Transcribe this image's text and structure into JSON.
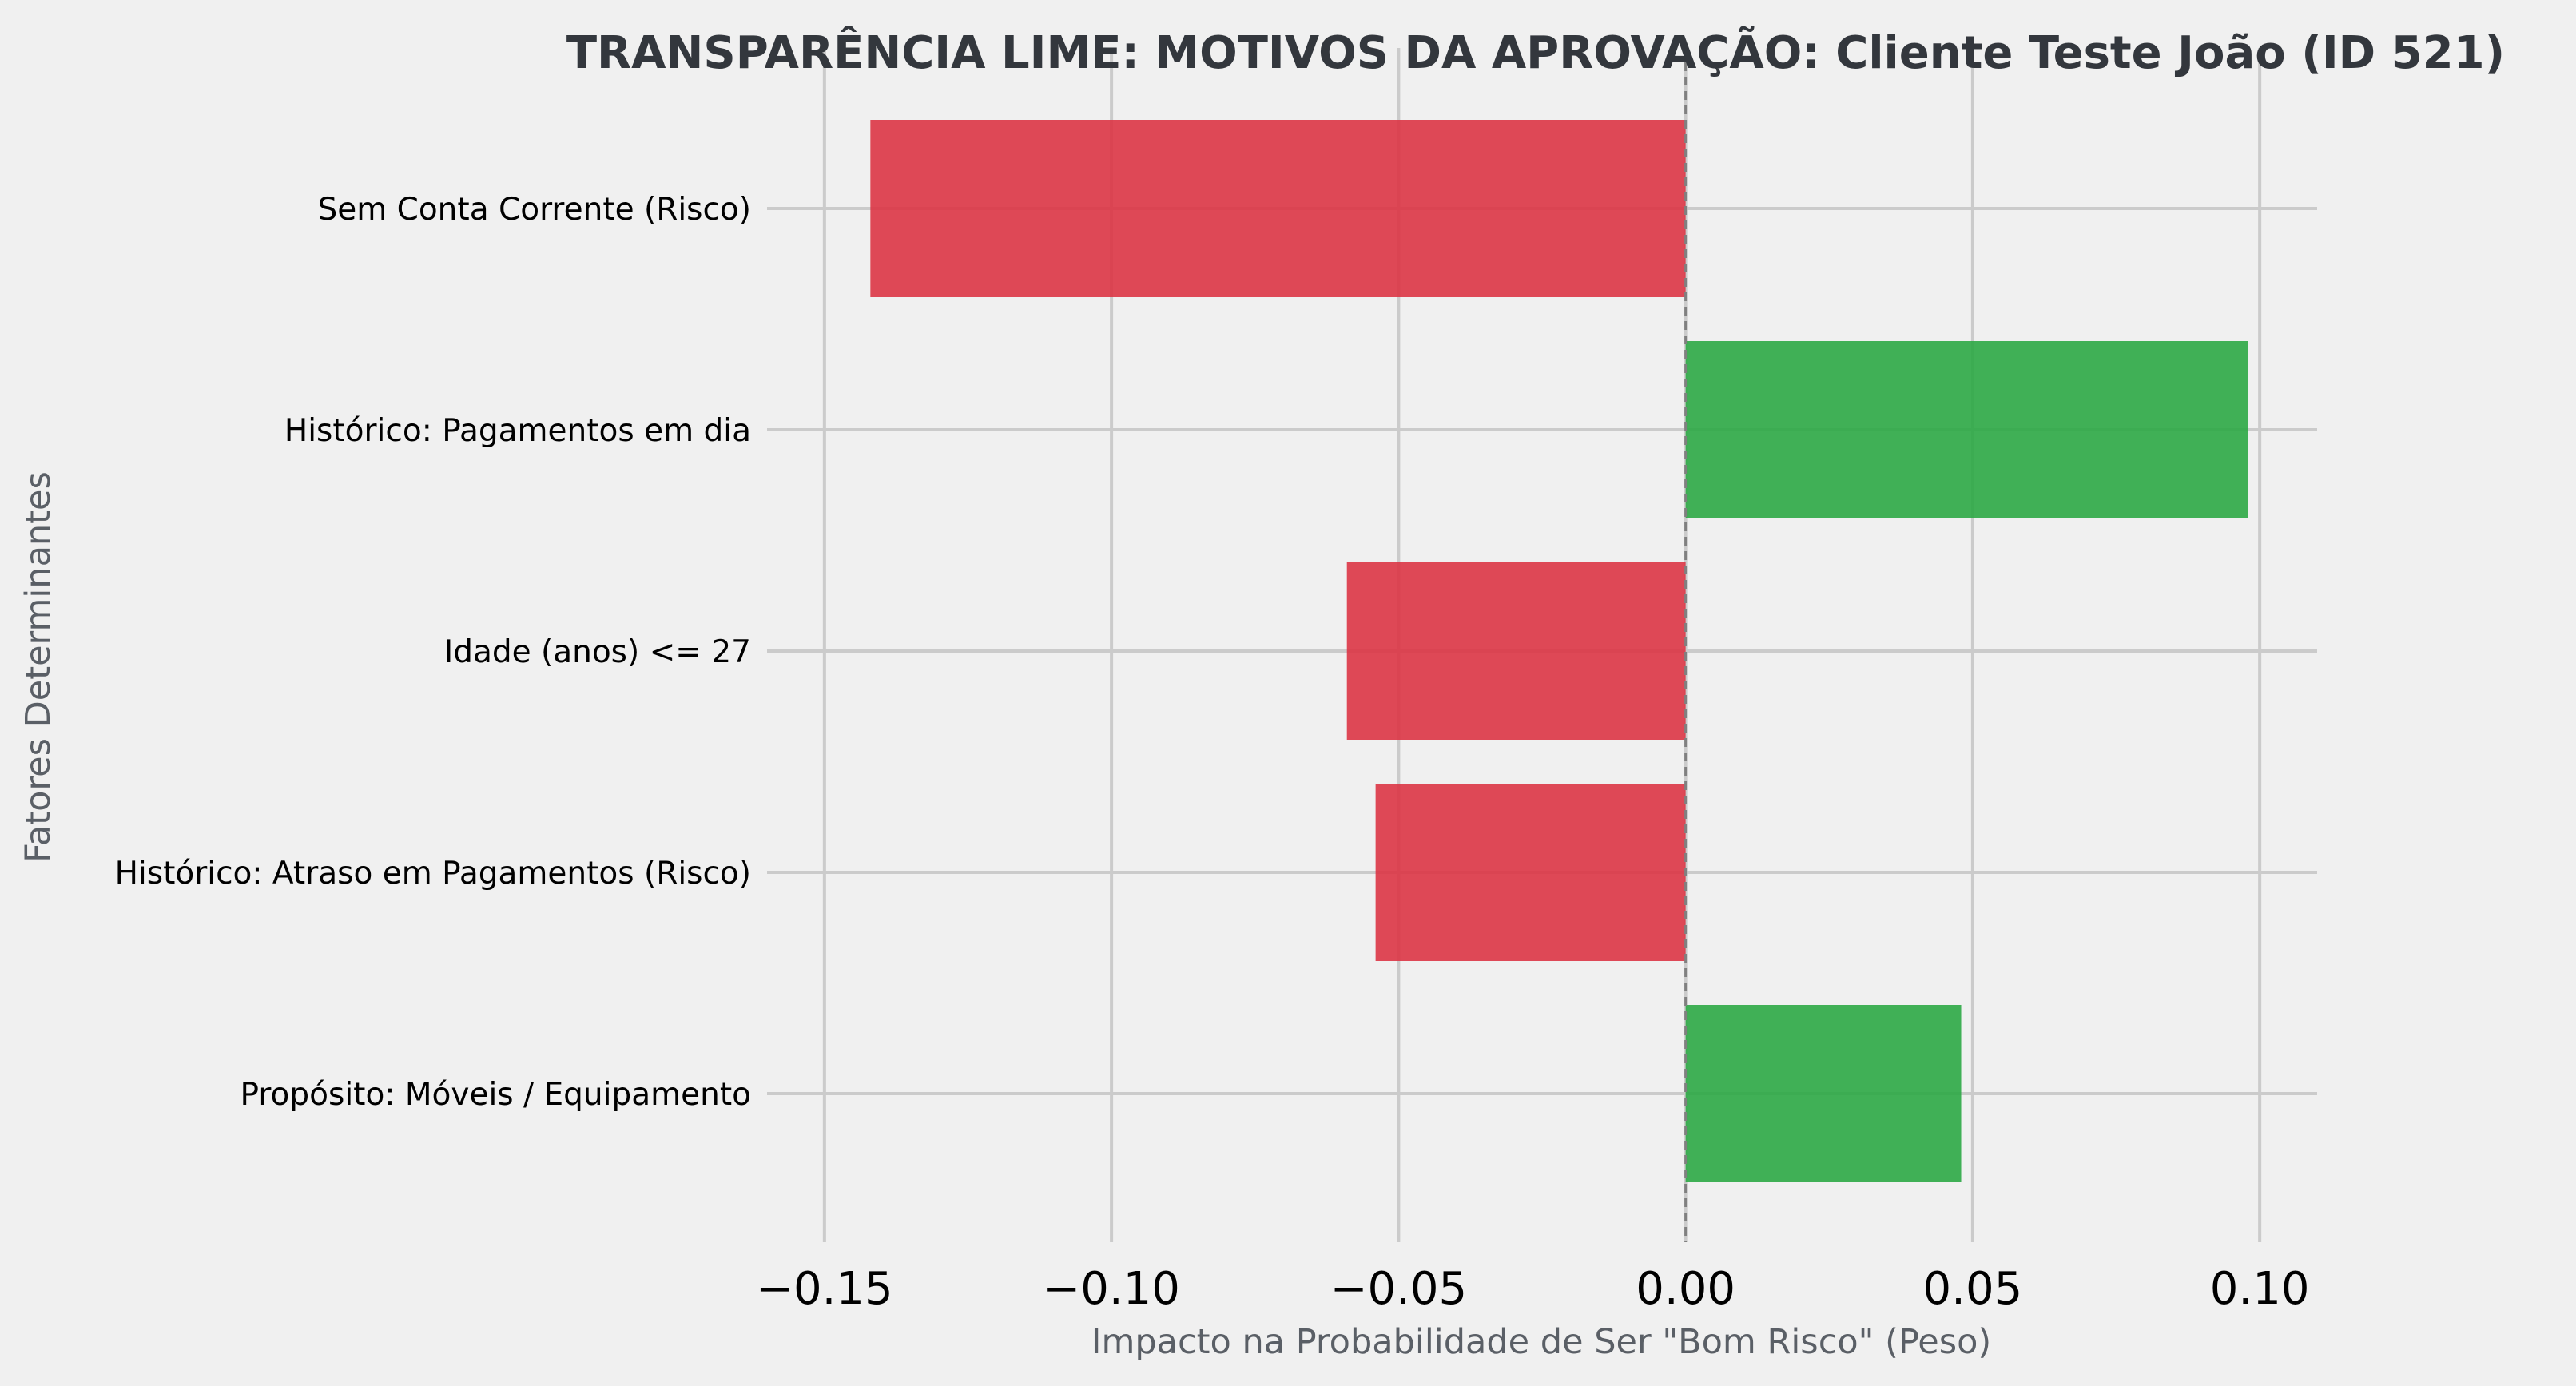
{
  "chart_data": {
    "type": "bar",
    "orientation": "horizontal",
    "title": "TRANSPARÊNCIA LIME: MOTIVOS DA APROVAÇÃO: Cliente Teste João (ID 521)",
    "xlabel": "Impacto na Probabilidade de Ser \"Bom Risco\" (Peso)",
    "ylabel": "Fatores Determinantes",
    "categories": [
      "Sem Conta Corrente (Risco)",
      "Histórico: Pagamentos em dia",
      "Idade (anos) <= 27",
      "Histórico: Atraso em Pagamentos (Risco)",
      "Propósito: Móveis / Equipamento"
    ],
    "values": [
      -0.142,
      0.098,
      -0.059,
      -0.054,
      0.048
    ],
    "xlim": [
      -0.16,
      0.11
    ],
    "xticks": [
      -0.15,
      -0.1,
      -0.05,
      0.0,
      0.05,
      0.1
    ],
    "xtick_labels": [
      "−0.15",
      "−0.10",
      "−0.05",
      "0.00",
      "0.05",
      "0.10"
    ],
    "grid": true,
    "zero_line": "dashed",
    "colors": {
      "positive": "#2ca845",
      "negative": "#dc3545",
      "grid": "#cbcbcb",
      "background": "#f0f0f0",
      "zero_line": "#808080"
    }
  }
}
